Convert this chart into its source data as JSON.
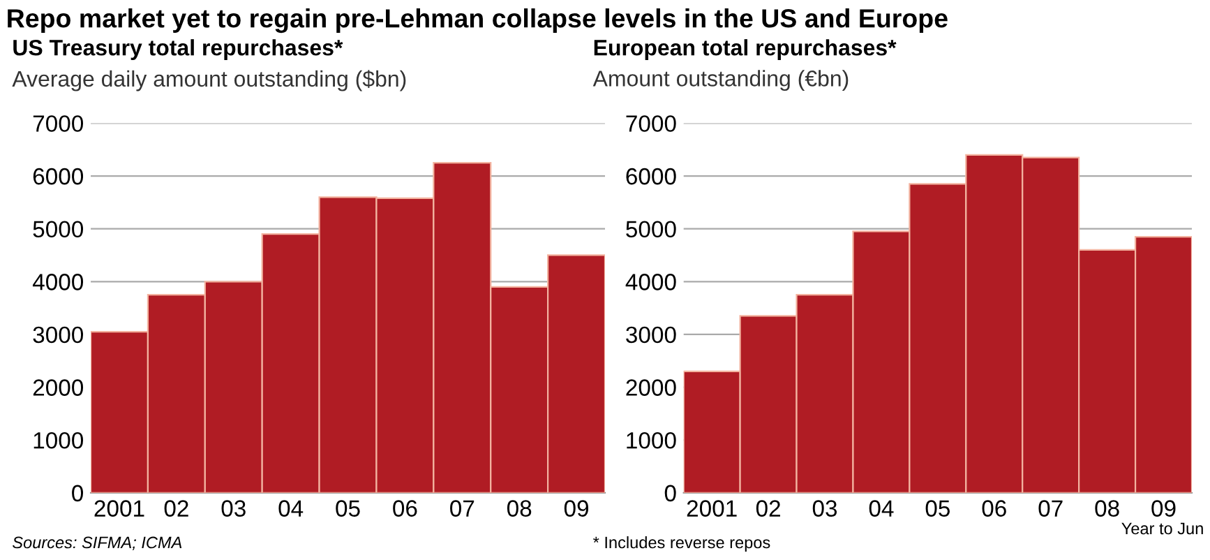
{
  "chart_data": [
    {
      "type": "bar",
      "title": "Repo market yet to regain pre-Lehman collapse levels in the US and Europe",
      "subtitle": "US Treasury total repurchases*",
      "ylabel": "Average daily amount outstanding ($bn)",
      "categories": [
        "2001",
        "02",
        "03",
        "04",
        "05",
        "06",
        "07",
        "08",
        "09"
      ],
      "values": [
        3050,
        3750,
        4000,
        4900,
        5600,
        5580,
        6250,
        3900,
        4500
      ],
      "color": "#b01c24",
      "ylim": [
        0,
        7000
      ],
      "yticks": [
        0,
        1000,
        2000,
        3000,
        4000,
        5000,
        6000,
        7000
      ],
      "grid": "y",
      "annotations": [
        "Sources: SIFMA; ICMA"
      ]
    },
    {
      "type": "bar",
      "subtitle": "European total repurchases*",
      "ylabel": "Amount outstanding (€bn)",
      "categories": [
        "2001",
        "02",
        "03",
        "04",
        "05",
        "06",
        "07",
        "08",
        "09"
      ],
      "values": [
        2300,
        3350,
        3750,
        4950,
        5850,
        6400,
        6350,
        4600,
        4850
      ],
      "color": "#b01c24",
      "ylim": [
        0,
        7000
      ],
      "yticks": [
        0,
        1000,
        2000,
        3000,
        4000,
        5000,
        6000,
        7000
      ],
      "grid": "y",
      "annotations": [
        "* Includes reverse repos",
        "Year to Jun"
      ]
    }
  ]
}
